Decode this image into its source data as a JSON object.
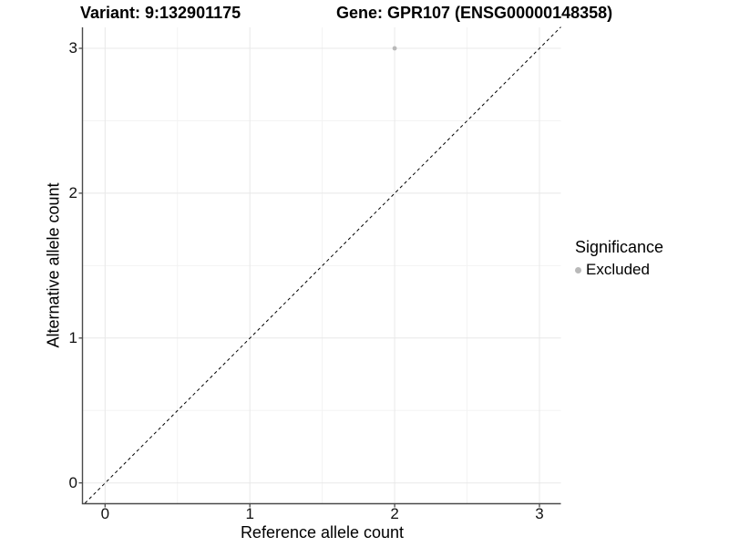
{
  "header": {
    "variant_title": "Variant: 9:132901175",
    "gene_title": "Gene: GPR107 (ENSG00000148358)"
  },
  "chart_data": {
    "type": "scatter",
    "xlabel": "Reference allele count",
    "ylabel": "Alternative allele count",
    "x_ticks": [
      "0",
      "1",
      "2",
      "3"
    ],
    "y_ticks": [
      "0",
      "1",
      "2",
      "3"
    ],
    "xlim": [
      -0.15,
      3.15
    ],
    "ylim": [
      -0.15,
      3.15
    ],
    "grid": "major and minor gridlines on, white background",
    "reference_line": {
      "type": "identity y=x",
      "style": "dashed",
      "color": "#000000"
    },
    "series": [
      {
        "name": "Excluded",
        "color": "#b9b9b9",
        "points": [
          [
            2,
            3
          ]
        ]
      }
    ],
    "legend": {
      "title": "Significance",
      "position": "right",
      "entries": [
        {
          "label": "Excluded",
          "color": "#b9b9b9"
        }
      ]
    }
  },
  "colors": {
    "background": "#ffffff",
    "axis_line": "#4a4a4a",
    "major_grid": "#e8e8e8",
    "minor_grid": "#f3f3f3",
    "text": "#000000",
    "excluded_point": "#b9b9b9"
  }
}
